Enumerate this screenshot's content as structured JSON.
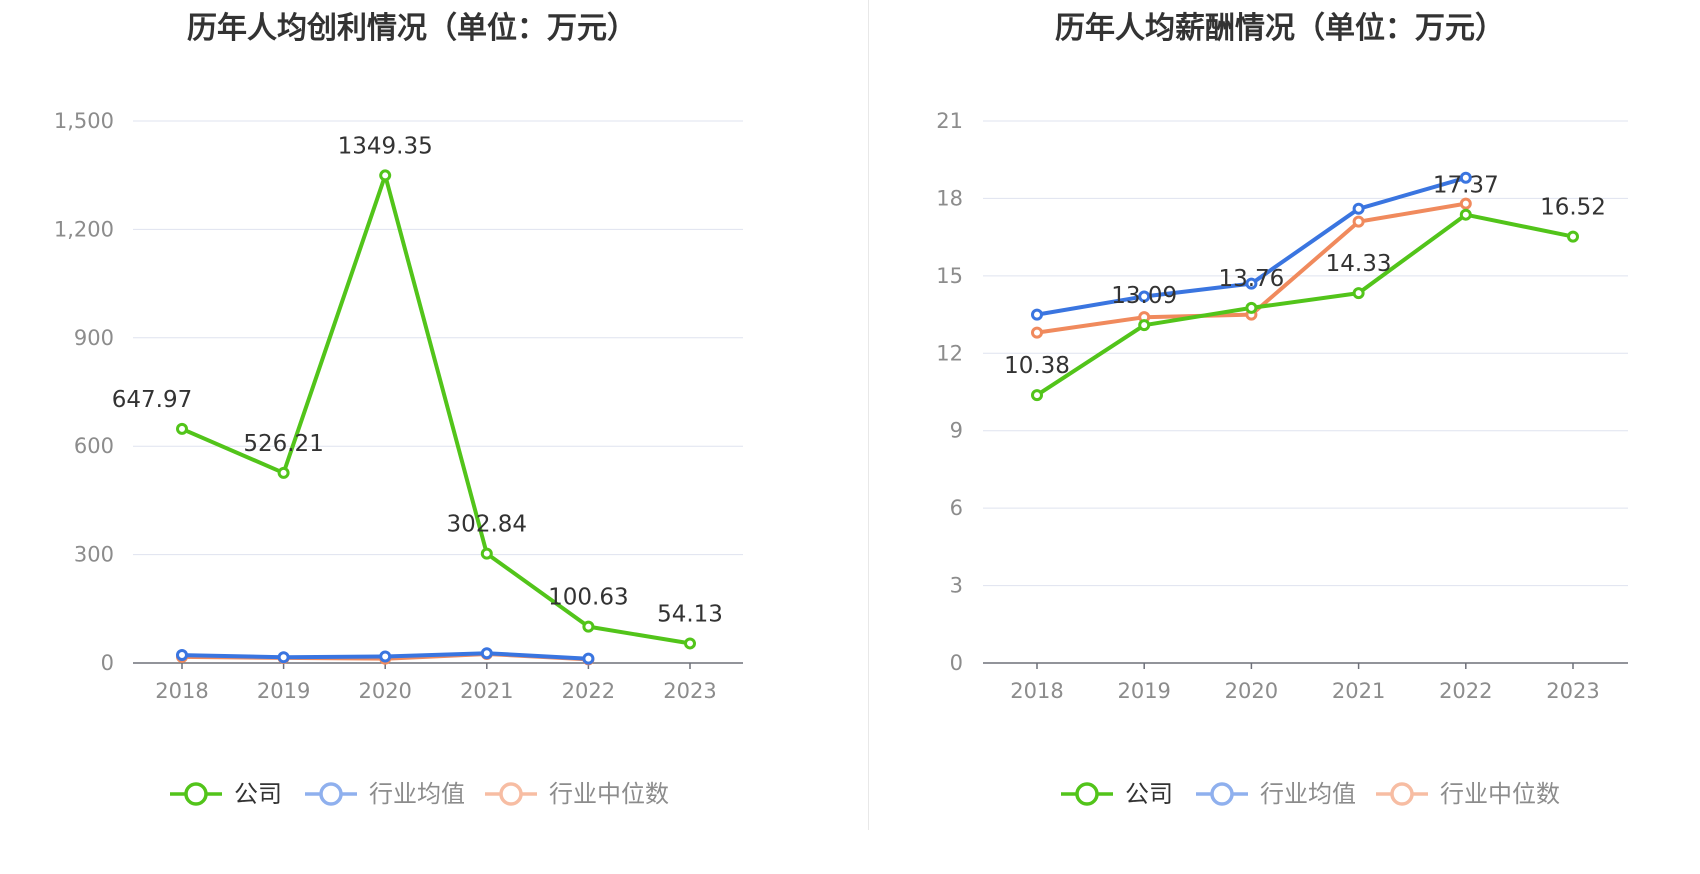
{
  "chart_data": [
    {
      "type": "line",
      "title": "历年人均创利情况（单位：万元）",
      "categories": [
        "2018",
        "2019",
        "2020",
        "2021",
        "2022",
        "2023"
      ],
      "ylim": [
        0,
        1500
      ],
      "yticks": [
        0,
        300,
        600,
        900,
        1200,
        1500
      ],
      "ytick_labels": [
        "0",
        "300",
        "600",
        "900",
        "1,200",
        "1,500"
      ],
      "grid": true,
      "legend_position": "bottom",
      "series": [
        {
          "name": "公司",
          "color": "#52c41a",
          "values": [
            647.97,
            526.21,
            1349.35,
            302.84,
            100.63,
            54.13
          ],
          "labels": [
            "647.97",
            "526.21",
            "1349.35",
            "302.84",
            "100.63",
            "54.13"
          ]
        },
        {
          "name": "行业均值",
          "color": "#3a75e0",
          "values": [
            22,
            16,
            18,
            27,
            12,
            null
          ]
        },
        {
          "name": "行业中位数",
          "color": "#f08a5d",
          "values": [
            17,
            14,
            12,
            25,
            10,
            null
          ]
        }
      ]
    },
    {
      "type": "line",
      "title": "历年人均薪酬情况（单位：万元）",
      "categories": [
        "2018",
        "2019",
        "2020",
        "2021",
        "2022",
        "2023"
      ],
      "ylim": [
        0,
        21
      ],
      "yticks": [
        0,
        3,
        6,
        9,
        12,
        15,
        18,
        21
      ],
      "ytick_labels": [
        "0",
        "3",
        "6",
        "9",
        "12",
        "15",
        "18",
        "21"
      ],
      "grid": true,
      "legend_position": "bottom",
      "series": [
        {
          "name": "公司",
          "color": "#52c41a",
          "values": [
            10.38,
            13.09,
            13.76,
            14.33,
            17.37,
            16.52
          ],
          "labels": [
            "10.38",
            "13.09",
            "13.76",
            "14.33",
            "17.37",
            "16.52"
          ]
        },
        {
          "name": "行业均值",
          "color": "#3a75e0",
          "values": [
            13.5,
            14.2,
            14.7,
            17.6,
            18.8,
            null
          ]
        },
        {
          "name": "行业中位数",
          "color": "#f08a5d",
          "values": [
            12.8,
            13.4,
            13.5,
            17.1,
            17.8,
            null
          ]
        }
      ]
    }
  ]
}
